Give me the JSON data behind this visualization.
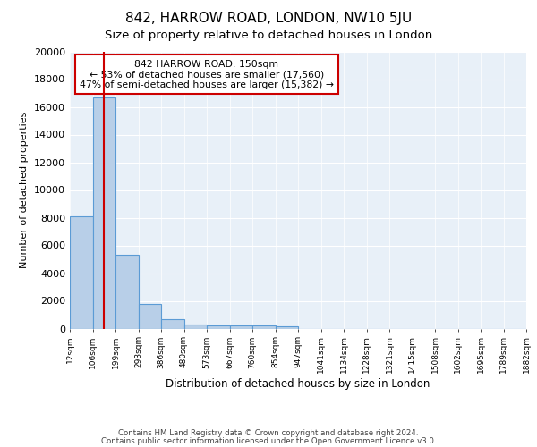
{
  "title1": "842, HARROW ROAD, LONDON, NW10 5JU",
  "title2": "Size of property relative to detached houses in London",
  "xlabel": "Distribution of detached houses by size in London",
  "ylabel": "Number of detached properties",
  "tick_labels": [
    "12sqm",
    "106sqm",
    "199sqm",
    "293sqm",
    "386sqm",
    "480sqm",
    "573sqm",
    "667sqm",
    "760sqm",
    "854sqm",
    "947sqm",
    "1041sqm",
    "1134sqm",
    "1228sqm",
    "1321sqm",
    "1415sqm",
    "1508sqm",
    "1602sqm",
    "1695sqm",
    "1789sqm",
    "1882sqm"
  ],
  "bar_heights": [
    8100,
    16650,
    5300,
    1750,
    700,
    320,
    240,
    230,
    210,
    180,
    0,
    0,
    0,
    0,
    0,
    0,
    0,
    0,
    0,
    0
  ],
  "bar_color": "#b8cfe8",
  "bar_edge_color": "#5b9bd5",
  "red_line_bin": 1.45,
  "red_line_color": "#cc0000",
  "annotation_text": "842 HARROW ROAD: 150sqm\n← 53% of detached houses are smaller (17,560)\n47% of semi-detached houses are larger (15,382) →",
  "annotation_box_color": "#ffffff",
  "annotation_box_edge": "#cc0000",
  "ylim": [
    0,
    20000
  ],
  "yticks": [
    0,
    2000,
    4000,
    6000,
    8000,
    10000,
    12000,
    14000,
    16000,
    18000,
    20000
  ],
  "footer1": "Contains HM Land Registry data © Crown copyright and database right 2024.",
  "footer2": "Contains public sector information licensed under the Open Government Licence v3.0.",
  "bg_color": "#e8f0f8",
  "fig_bg": "#ffffff",
  "title1_fontsize": 11,
  "title2_fontsize": 9.5
}
